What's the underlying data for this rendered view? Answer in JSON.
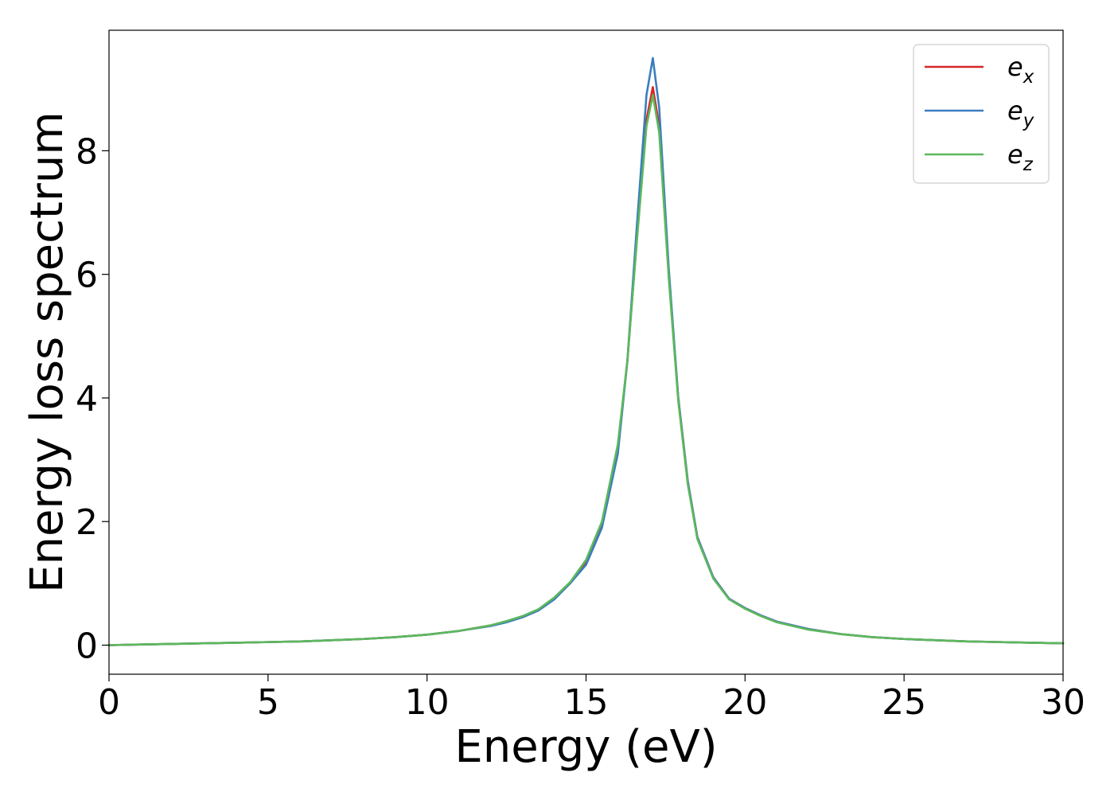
{
  "chart_data": {
    "type": "line",
    "title": "",
    "xlabel": "Energy (eV)",
    "ylabel": "Energy loss spectrum",
    "xlim": [
      0,
      30
    ],
    "ylim": [
      -0.47,
      9.95
    ],
    "xticks": [
      0,
      5,
      10,
      15,
      20,
      25,
      30
    ],
    "yticks": [
      0,
      2,
      4,
      6,
      8
    ],
    "grid": false,
    "legend_position": "top-right",
    "x": [
      0,
      1,
      2,
      3,
      4,
      5,
      6,
      7,
      8,
      9,
      10,
      11,
      12,
      12.5,
      13,
      13.5,
      14,
      14.5,
      15,
      15.5,
      16,
      16.3,
      16.6,
      16.9,
      17.1,
      17.3,
      17.6,
      17.9,
      18.2,
      18.5,
      19,
      19.5,
      20,
      20.5,
      21,
      22,
      23,
      24,
      25,
      26,
      27,
      28,
      29,
      30
    ],
    "series": [
      {
        "name": "e",
        "subscript": "x",
        "color": "#d62728",
        "values": [
          0,
          0.01,
          0.02,
          0.03,
          0.04,
          0.05,
          0.06,
          0.08,
          0.1,
          0.13,
          0.17,
          0.23,
          0.32,
          0.38,
          0.46,
          0.57,
          0.75,
          1.0,
          1.35,
          1.95,
          3.2,
          4.6,
          6.6,
          8.5,
          9.03,
          8.4,
          6.0,
          4.0,
          2.65,
          1.75,
          1.1,
          0.75,
          0.6,
          0.48,
          0.38,
          0.26,
          0.18,
          0.13,
          0.1,
          0.08,
          0.06,
          0.05,
          0.04,
          0.03
        ]
      },
      {
        "name": "e",
        "subscript": "y",
        "color": "#3b7dbf",
        "values": [
          0,
          0.01,
          0.02,
          0.03,
          0.04,
          0.05,
          0.06,
          0.08,
          0.1,
          0.13,
          0.17,
          0.23,
          0.31,
          0.37,
          0.45,
          0.56,
          0.74,
          1.0,
          1.3,
          1.9,
          3.1,
          4.6,
          6.8,
          8.9,
          9.5,
          8.7,
          6.1,
          4.0,
          2.65,
          1.75,
          1.1,
          0.75,
          0.6,
          0.48,
          0.38,
          0.26,
          0.18,
          0.13,
          0.1,
          0.08,
          0.06,
          0.05,
          0.04,
          0.03
        ]
      },
      {
        "name": "e",
        "subscript": "z",
        "color": "#5cb85c",
        "values": [
          0,
          0.01,
          0.02,
          0.03,
          0.04,
          0.05,
          0.06,
          0.08,
          0.1,
          0.13,
          0.17,
          0.23,
          0.32,
          0.39,
          0.47,
          0.58,
          0.77,
          1.02,
          1.38,
          2.0,
          3.25,
          4.6,
          6.55,
          8.4,
          8.9,
          8.3,
          5.95,
          3.95,
          2.6,
          1.72,
          1.08,
          0.74,
          0.59,
          0.47,
          0.37,
          0.25,
          0.18,
          0.13,
          0.1,
          0.08,
          0.06,
          0.05,
          0.04,
          0.03
        ]
      }
    ]
  }
}
